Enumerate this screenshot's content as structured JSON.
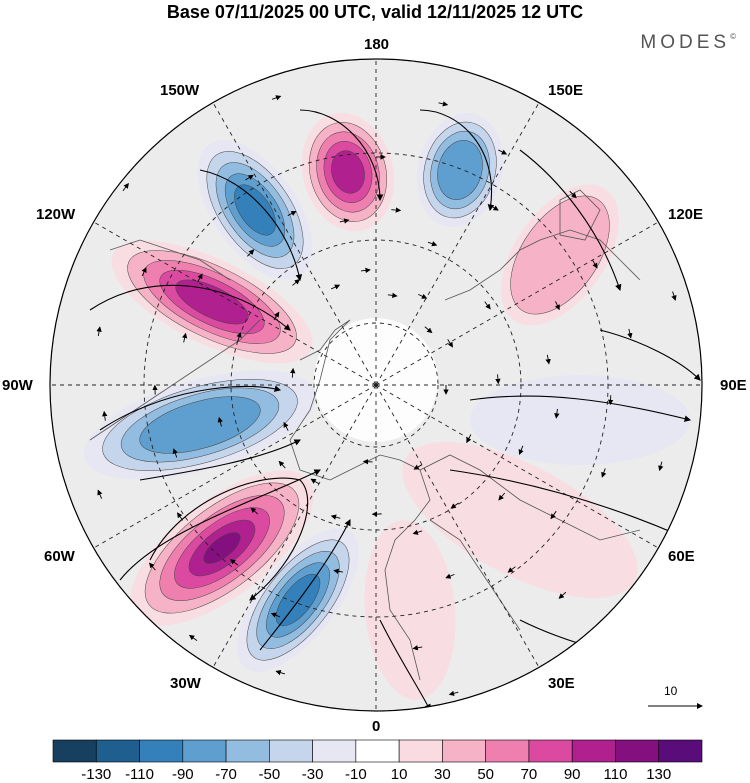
{
  "header": {
    "title": "Base 07/11/2025 00 UTC, valid 12/11/2025 12 UTC",
    "brand": "MODES",
    "brand_mark": "©"
  },
  "map": {
    "projection": "north-polar-stereographic",
    "longitude_labels": {
      "lon_180": "180",
      "lon_150e": "150E",
      "lon_120e": "120E",
      "lon_90e": "90E",
      "lon_60e": "60E",
      "lon_30e": "30E",
      "lon_0": "0",
      "lon_30w": "30W",
      "lon_60w": "60W",
      "lon_90w": "90W",
      "lon_120w": "120W",
      "lon_150w": "150W"
    },
    "wind_reference_vector": "10",
    "anomaly_centers": [
      {
        "name": "positive-center-north-atlantic",
        "sign": "positive",
        "max_value": 130
      },
      {
        "name": "negative-center-greenland-sea",
        "sign": "negative",
        "max_value": -110
      },
      {
        "name": "negative-center-canada",
        "sign": "negative",
        "max_value": -90
      },
      {
        "name": "positive-center-alaska",
        "sign": "positive",
        "max_value": 110
      },
      {
        "name": "negative-center-east-pacific",
        "sign": "negative",
        "max_value": -110
      },
      {
        "name": "positive-center-bering",
        "sign": "positive",
        "max_value": 110
      },
      {
        "name": "negative-center-kamchatka",
        "sign": "negative",
        "max_value": -90
      },
      {
        "name": "positive-center-siberia",
        "sign": "positive",
        "max_value": 50
      },
      {
        "name": "positive-center-europe",
        "sign": "positive",
        "max_value": 30
      }
    ]
  },
  "colorbar": {
    "levels": [
      "-130",
      "-110",
      "-90",
      "-70",
      "-50",
      "-30",
      "-10",
      "10",
      "30",
      "50",
      "70",
      "90",
      "110",
      "130"
    ],
    "colors": [
      "#173f5f",
      "#1e5f8f",
      "#3480bb",
      "#5e9fcf",
      "#93bde0",
      "#c4d5ec",
      "#e6e7f3",
      "#ffffff",
      "#fadbe2",
      "#f6b2c6",
      "#ee7fae",
      "#db4aa0",
      "#b1208f",
      "#841080",
      "#5a0d7a"
    ]
  }
}
